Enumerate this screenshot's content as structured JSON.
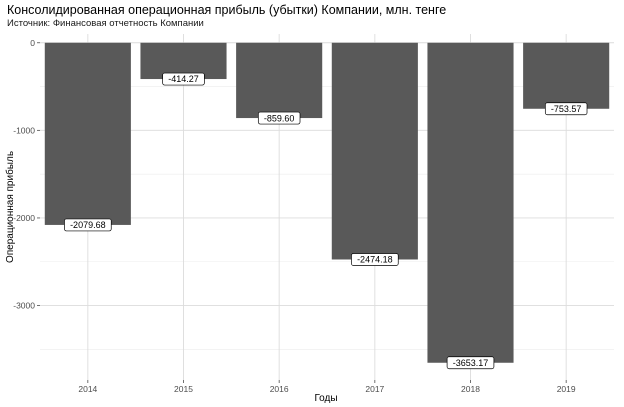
{
  "chart_data": {
    "type": "bar",
    "title": "Консолидированная операционная прибыль (убытки) Компании, млн. тенге",
    "subtitle": "Источник: Финансовая отчетность Компании",
    "xlabel": "Годы",
    "ylabel": "Операционная прибыль",
    "categories": [
      "2014",
      "2015",
      "2016",
      "2017",
      "2018",
      "2019"
    ],
    "values": [
      -2079.68,
      -414.27,
      -859.6,
      -2474.18,
      -3653.17,
      -753.57
    ],
    "data_labels": [
      "-2079.68",
      "-414.27",
      "-859.60",
      "-2474.18",
      "-3653.17",
      "-753.57"
    ],
    "ylim": [
      -3850,
      100
    ],
    "y_ticks": [
      0,
      -1000,
      -2000,
      -3000
    ],
    "y_tick_labels": [
      "0",
      "-1000",
      "-2000",
      "-3000"
    ],
    "grid": true,
    "legend": "none",
    "bar_color": "#595959"
  }
}
